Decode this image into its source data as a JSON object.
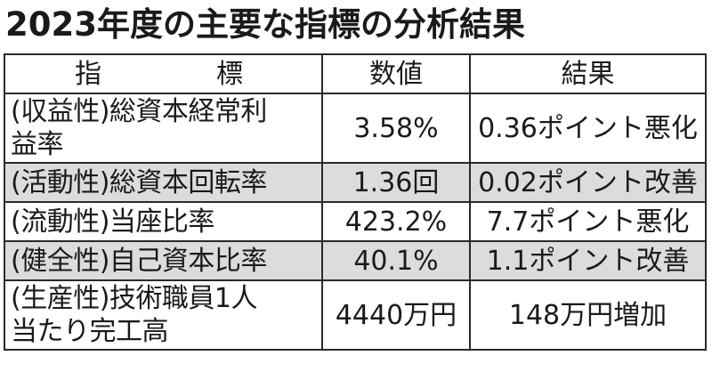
{
  "title": "2023年度の主要な指標の分析結果",
  "headers": {
    "metric_chars": [
      "指",
      "標"
    ],
    "value": "数値",
    "result": "結果"
  },
  "rows": [
    {
      "metric_line1": "(収益性)総資本経常利",
      "metric_line2": "益率",
      "value": "3.58%",
      "result": "0.36ポイント悪化",
      "shaded": false
    },
    {
      "metric_line1": "(活動性)総資本回転率",
      "metric_line2": "",
      "value": "1.36回",
      "result": "0.02ポイント改善",
      "shaded": true
    },
    {
      "metric_line1": "(流動性)当座比率",
      "metric_line2": "",
      "value": "423.2%",
      "result": "7.7ポイント悪化",
      "shaded": false
    },
    {
      "metric_line1": "(健全性)自己資本比率",
      "metric_line2": "",
      "value": "40.1%",
      "result": "1.1ポイント改善",
      "shaded": true
    },
    {
      "metric_line1": "(生産性)技術職員1人",
      "metric_line2": "当たり完工高",
      "value": "4440万円",
      "result": "148万円増加",
      "shaded": false
    }
  ],
  "colors": {
    "shaded_row": "#dcdcdc",
    "border": "#2a2a2a",
    "text": "#1a1a1a"
  }
}
